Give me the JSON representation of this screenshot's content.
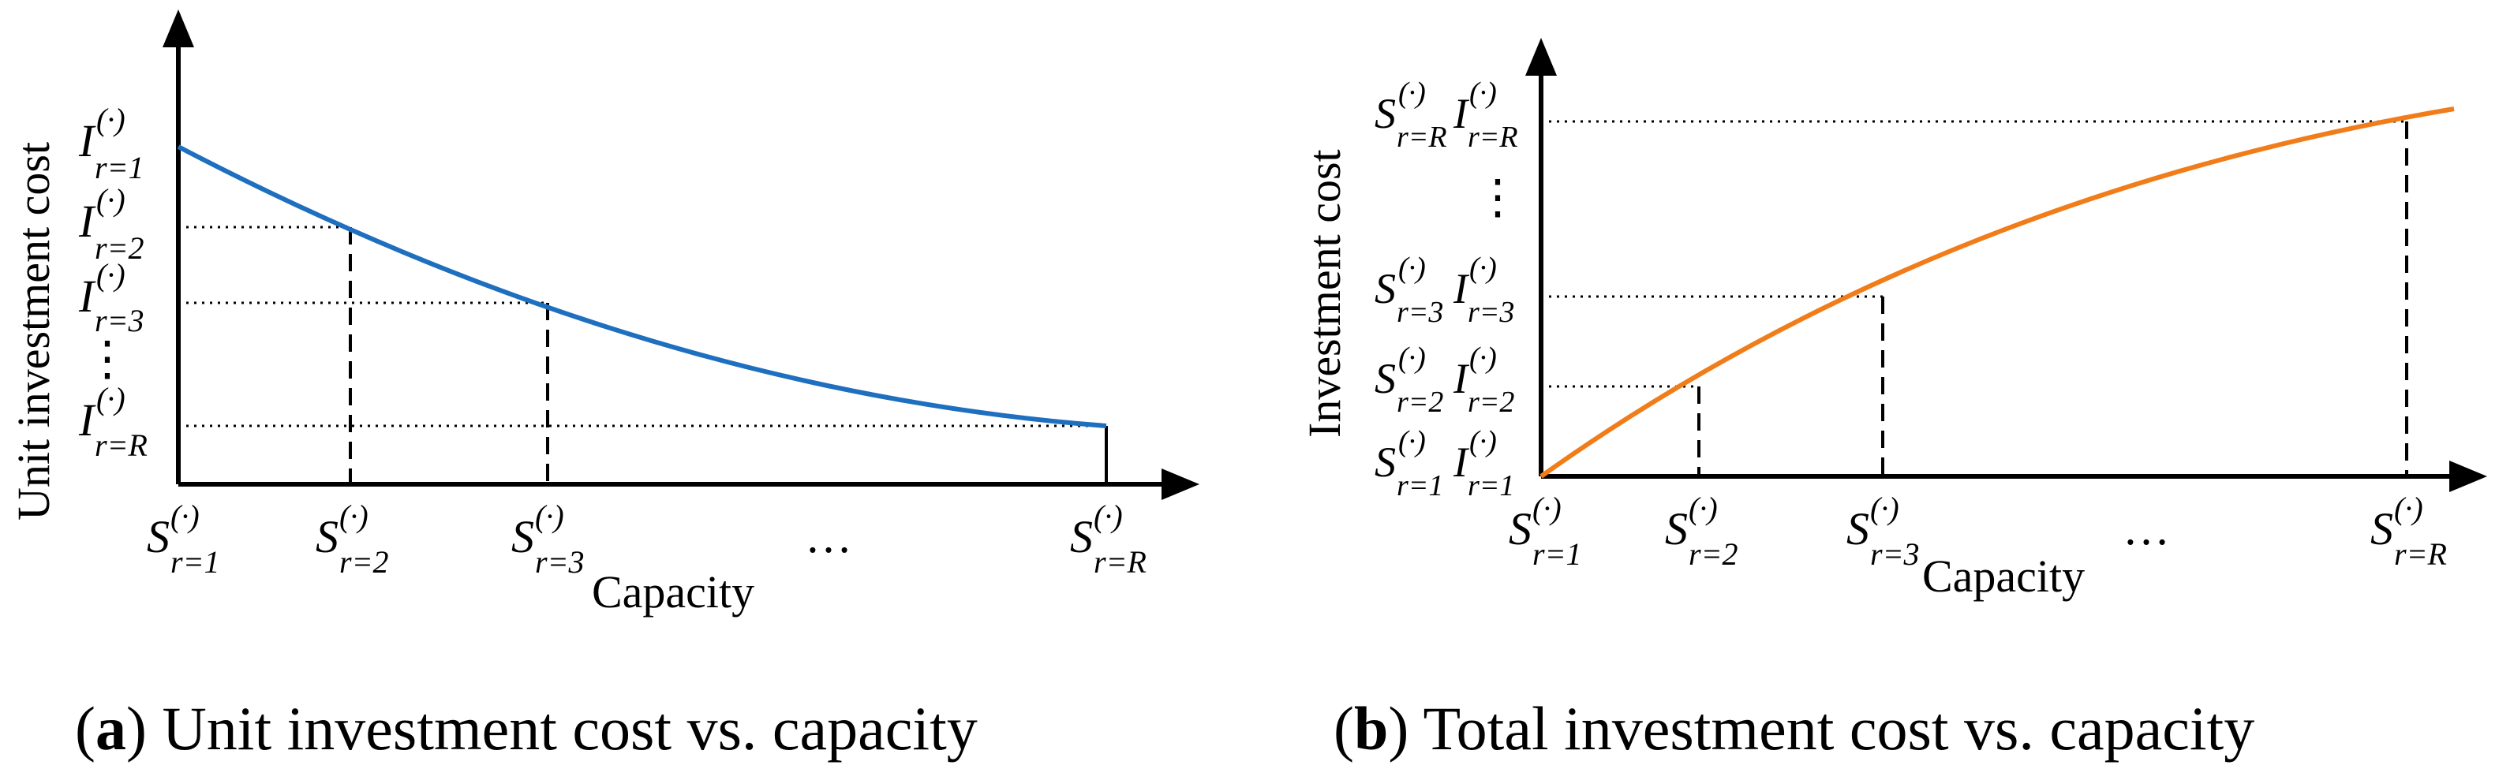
{
  "chart_data": [
    {
      "type": "line",
      "panel": "a",
      "title": "Unit investment cost vs. capacity",
      "caption_label": "a",
      "xlabel": "Capacity",
      "ylabel": "Unit investment cost",
      "x_ticks": [
        {
          "sym": "S",
          "sub": "r=1"
        },
        {
          "sym": "S",
          "sub": "r=2"
        },
        {
          "sym": "S",
          "sub": "r=3"
        },
        {
          "sym": "…",
          "sub": ""
        },
        {
          "sym": "S",
          "sub": "r=R"
        }
      ],
      "y_ticks": [
        {
          "sym": "I",
          "sub": "r=1"
        },
        {
          "sym": "I",
          "sub": "r=2"
        },
        {
          "sym": "I",
          "sub": "r=3"
        },
        {
          "sym": "⋮",
          "sub": ""
        },
        {
          "sym": "I",
          "sub": "r=R"
        }
      ],
      "superscript": "(·)",
      "x": [
        0,
        1,
        2.15,
        5.4
      ],
      "y": [
        1.0,
        0.76,
        0.54,
        0.18
      ],
      "curve": "decreasing convex",
      "color": "#1f6fbf"
    },
    {
      "type": "line",
      "panel": "b",
      "title": "Total investment cost vs. capacity",
      "caption_label": "b",
      "xlabel": "Capacity",
      "ylabel": "Investment cost",
      "x_ticks": [
        {
          "sym": "S",
          "sub": "r=1"
        },
        {
          "sym": "S",
          "sub": "r=2"
        },
        {
          "sym": "S",
          "sub": "r=3"
        },
        {
          "sym": "…",
          "sub": ""
        },
        {
          "sym": "S",
          "sub": "r=R"
        }
      ],
      "y_ticks": [
        {
          "sym": "SI",
          "sub": "r=1"
        },
        {
          "sym": "SI",
          "sub": "r=2"
        },
        {
          "sym": "SI",
          "sub": "r=3"
        },
        {
          "sym": "⋮",
          "sub": ""
        },
        {
          "sym": "SI",
          "sub": "r=R"
        }
      ],
      "superscript": "(·)",
      "x": [
        0,
        1,
        2.15,
        5.4
      ],
      "y": [
        0,
        0.26,
        0.52,
        1.0
      ],
      "curve": "increasing concave",
      "color": "#f07d1a"
    }
  ]
}
